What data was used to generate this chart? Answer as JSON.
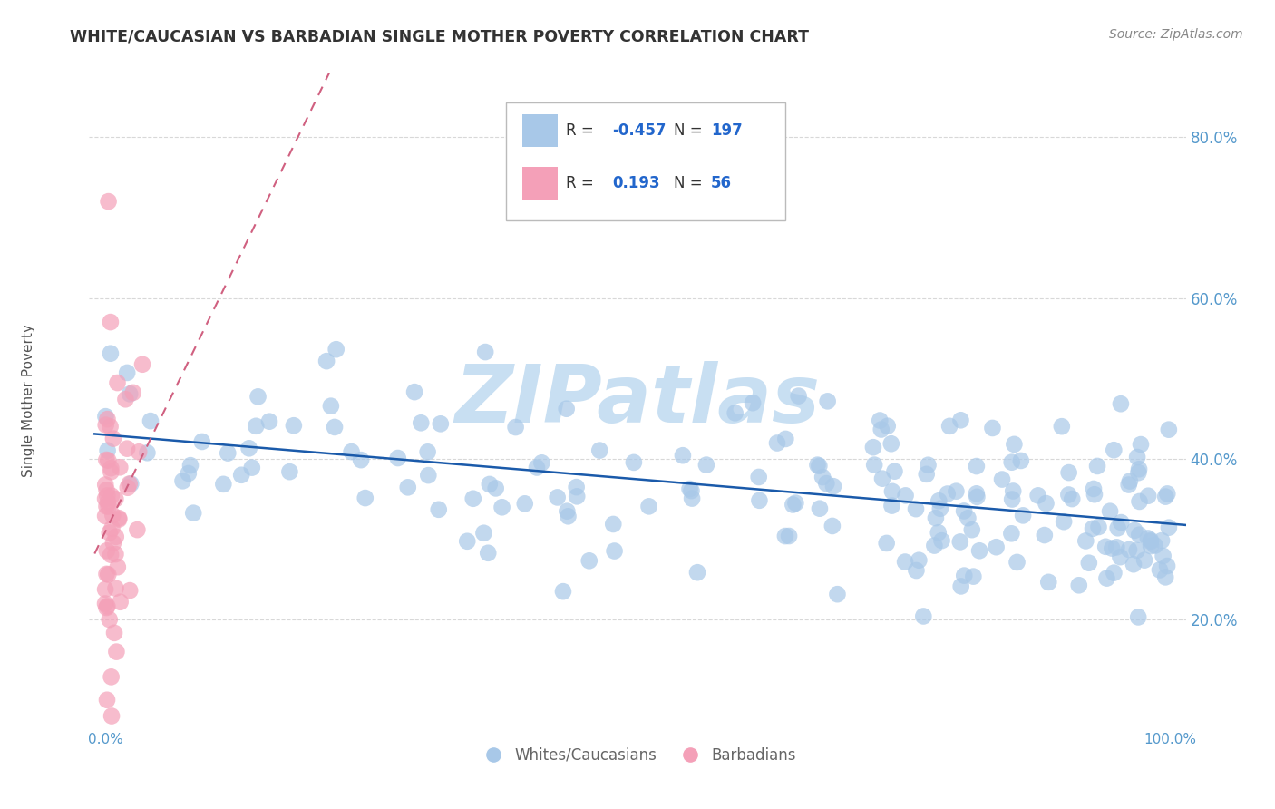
{
  "title": "WHITE/CAUCASIAN VS BARBADIAN SINGLE MOTHER POVERTY CORRELATION CHART",
  "source": "Source: ZipAtlas.com",
  "ylabel": "Single Mother Poverty",
  "r_blue": -0.457,
  "n_blue": 197,
  "r_pink": 0.193,
  "n_pink": 56,
  "blue_color": "#a8c8e8",
  "blue_line_color": "#1a5aaa",
  "pink_color": "#f4a0b8",
  "pink_line_color": "#d06080",
  "watermark_text": "ZIPatlas",
  "watermark_color": "#c8dff2",
  "background_color": "#ffffff",
  "grid_color": "#d8d8d8",
  "title_color": "#333333",
  "axis_label_color": "#555555",
  "tick_color": "#5599cc",
  "legend_r_color": "#2266cc",
  "legend_label_color": "#333333",
  "bottom_legend_color": "#666666",
  "source_color": "#888888",
  "seed": 12
}
